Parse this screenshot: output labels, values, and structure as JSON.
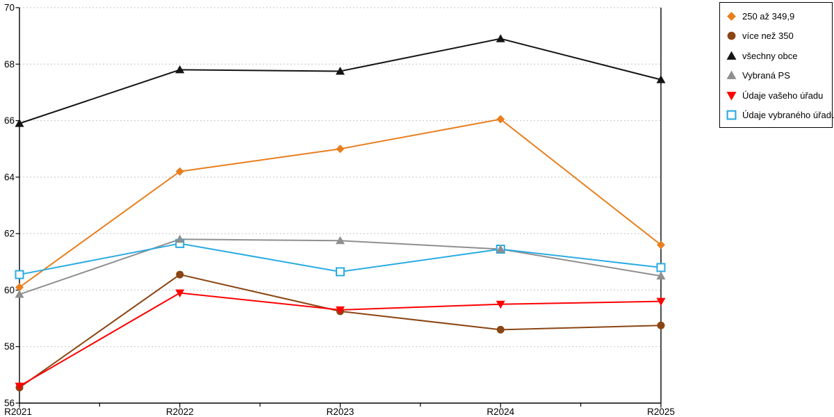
{
  "chart_data": {
    "type": "line",
    "title": "",
    "xlabel": "",
    "ylabel": "",
    "categories": [
      "R2021",
      "R2022",
      "R2023",
      "R2024",
      "R2025"
    ],
    "y_tick_labels": [
      "56",
      "58",
      "60",
      "62",
      "64",
      "66",
      "68",
      "70"
    ],
    "ylim": [
      56,
      70
    ],
    "ytick_step": 2,
    "grid": "horizontal-dotted",
    "gridline_color": "#c3c3c3",
    "axis_color": "#000000",
    "plot_border": "left-right-bottom",
    "x_minor_ticks_between_categories": true,
    "legend_position": "outside-top-right",
    "marker_draw_order": [
      0,
      1,
      2,
      5,
      3,
      4
    ],
    "series": [
      {
        "name": "250 až 349,9",
        "color": "#e87e1e",
        "marker": "diamond",
        "values": [
          60.1,
          64.2,
          65.0,
          66.05,
          61.6
        ]
      },
      {
        "name": "více než 350",
        "color": "#8b4513",
        "marker": "circle",
        "values": [
          56.55,
          60.55,
          59.25,
          58.6,
          58.75
        ]
      },
      {
        "name": "všechny obce",
        "color": "#141414",
        "marker": "triangle-up",
        "values": [
          65.9,
          67.8,
          67.75,
          68.9,
          67.45
        ]
      },
      {
        "name": "Vybraná PS",
        "color": "#8f8f8f",
        "marker": "triangle-up",
        "values": [
          59.85,
          61.8,
          61.75,
          61.45,
          60.5
        ]
      },
      {
        "name": "Údaje vašeho úřadu",
        "color": "#ff0000",
        "marker": "triangle-down",
        "values": [
          56.6,
          59.9,
          59.3,
          59.5,
          59.6
        ]
      },
      {
        "name": "Údaje vybraného úřadu",
        "color": "#29abe2",
        "marker": "square-open",
        "values": [
          60.55,
          61.65,
          60.65,
          61.45,
          60.8
        ]
      }
    ]
  },
  "legend": {
    "items": [
      "250 až 349,9",
      "více než 350",
      "všechny obce",
      "Vybraná PS",
      "Údaje vašeho úřadu",
      "Údaje vybraného úřadu"
    ]
  }
}
